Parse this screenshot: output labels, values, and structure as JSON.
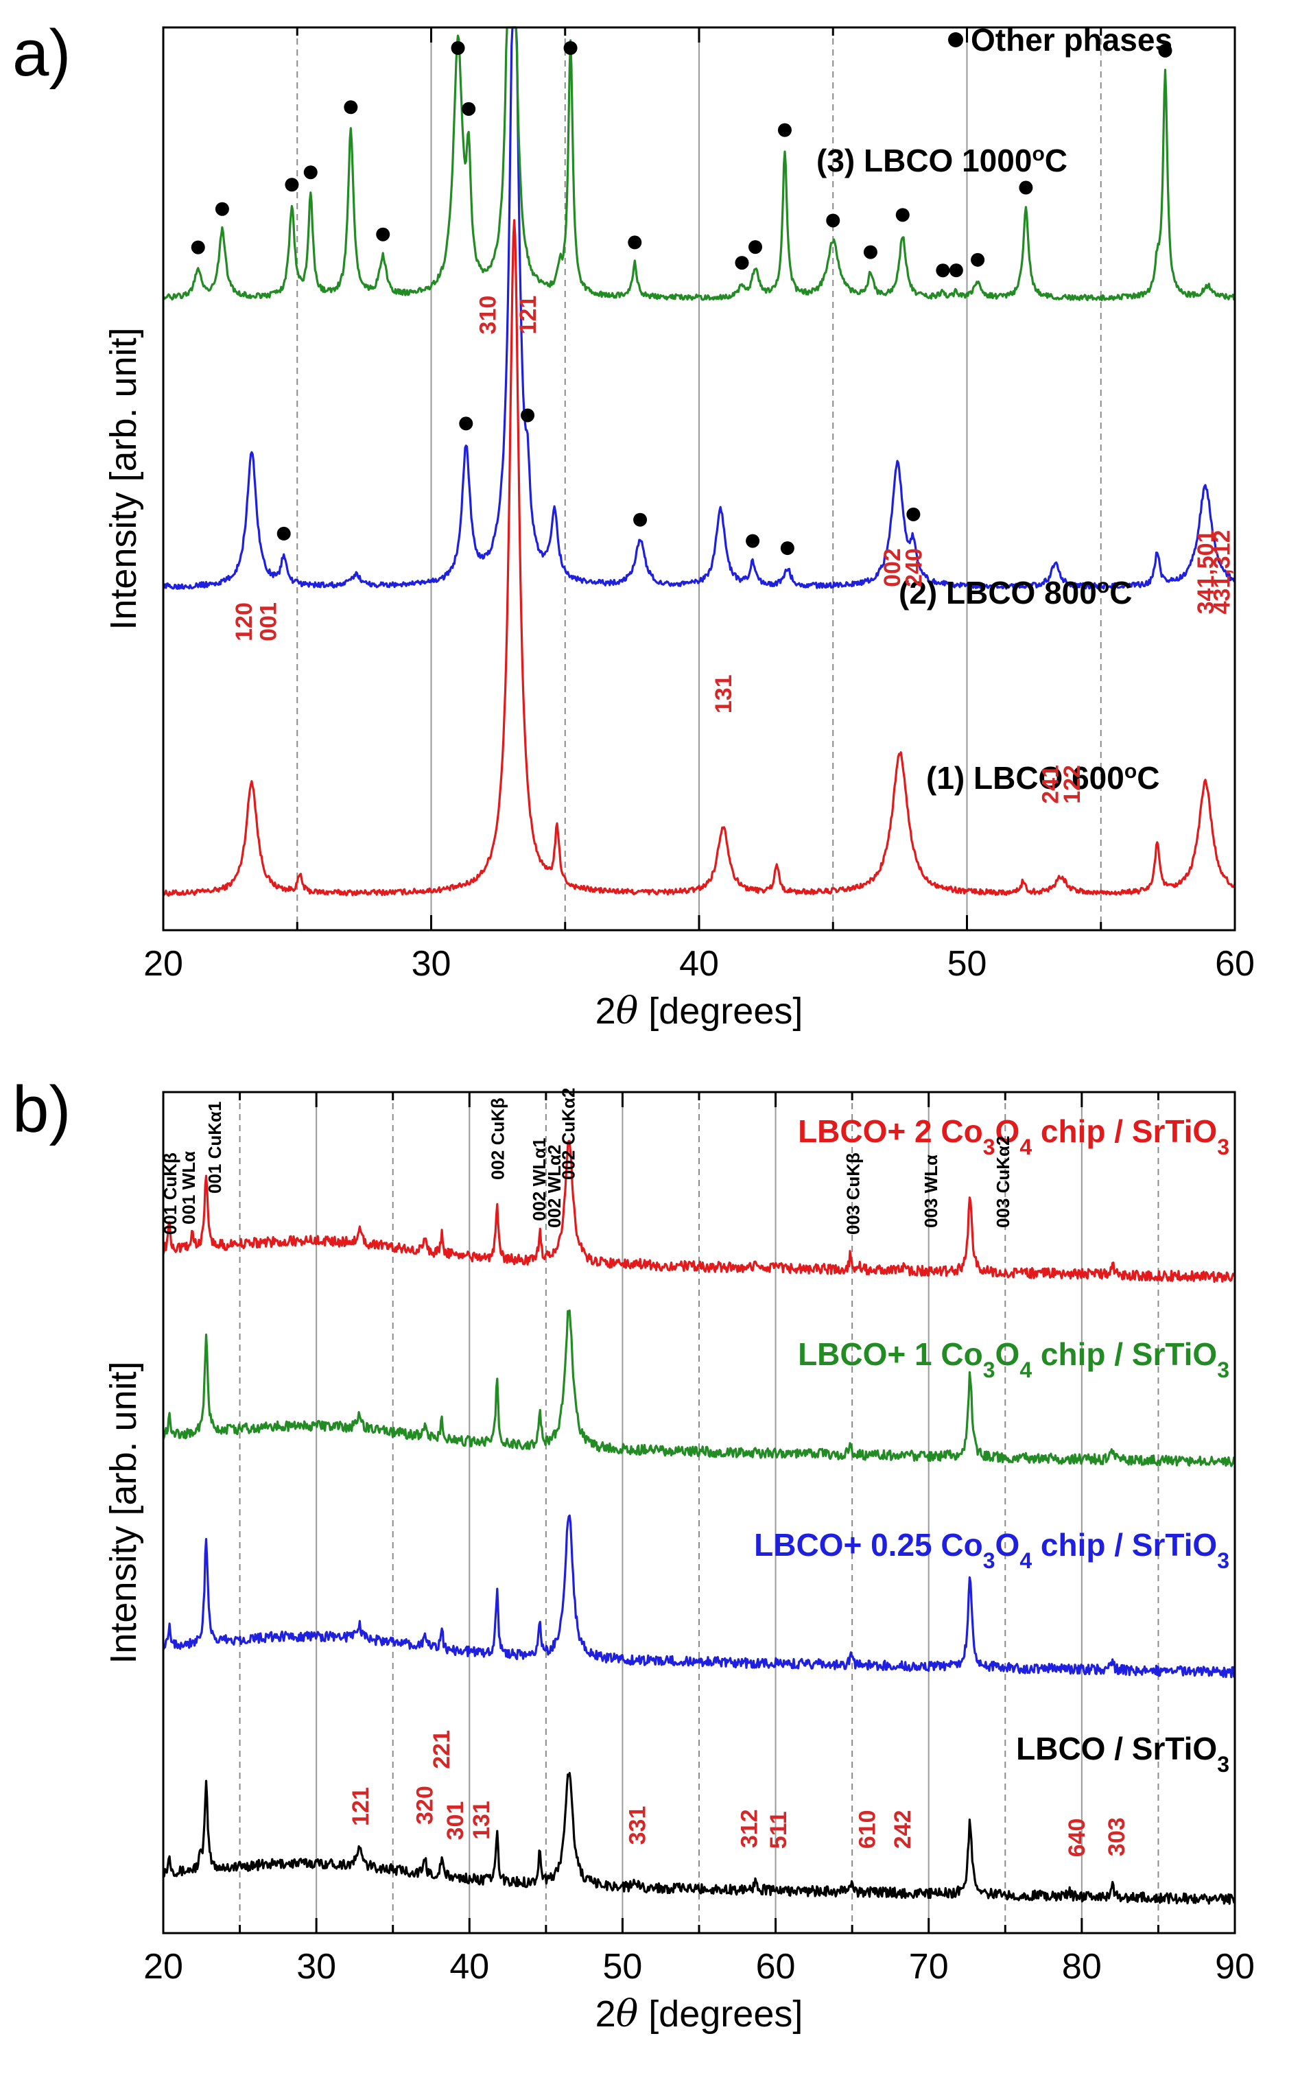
{
  "chart_data": [
    {
      "panel": "a)",
      "type": "line",
      "xlabel_prefix": "2",
      "xlabel_theta": "θ",
      "xlabel_suffix": " [degrees]",
      "ylabel": "Intensity [arb. unit]",
      "xlim": [
        20,
        60
      ],
      "xticks": [
        20,
        30,
        40,
        50,
        60
      ],
      "solid_gridlines_x": [
        30,
        40,
        50
      ],
      "dashed_gridlines_x": [
        25,
        35,
        45,
        55
      ],
      "legend": "Other phases",
      "series": [
        {
          "name": "(1) LBCO 600°C",
          "label_main": "(1) LBCO 600",
          "label_sup": "o",
          "label_end": "C",
          "color": "#e31a1c",
          "baseline": 0.04,
          "peaks": [
            [
              23.3,
              0.2,
              0.25
            ],
            [
              25.1,
              0.03,
              0.1
            ],
            [
              33.1,
              1.2,
              0.22
            ],
            [
              34.7,
              0.1,
              0.1
            ],
            [
              40.9,
              0.12,
              0.25
            ],
            [
              42.9,
              0.05,
              0.1
            ],
            [
              47.5,
              0.25,
              0.35
            ],
            [
              52.1,
              0.02,
              0.1
            ],
            [
              53.5,
              0.03,
              0.25
            ],
            [
              57.1,
              0.09,
              0.1
            ],
            [
              58.9,
              0.2,
              0.3
            ]
          ]
        },
        {
          "name": "(2) LBCO 800°C",
          "label_main": "(2) LBCO 800",
          "label_sup": "o",
          "label_end": "C",
          "color": "#1f1fe0",
          "baseline": 0.38,
          "peaks": [
            [
              23.3,
              0.24,
              0.22
            ],
            [
              24.5,
              0.05,
              0.12
            ],
            [
              27.2,
              0.02,
              0.2
            ],
            [
              31.3,
              0.24,
              0.18
            ],
            [
              33.1,
              1.2,
              0.2
            ],
            [
              33.6,
              0.1,
              0.1
            ],
            [
              34.6,
              0.12,
              0.15
            ],
            [
              37.8,
              0.08,
              0.22
            ],
            [
              40.8,
              0.14,
              0.2
            ],
            [
              42.0,
              0.04,
              0.12
            ],
            [
              43.3,
              0.03,
              0.15
            ],
            [
              47.4,
              0.22,
              0.25
            ],
            [
              48.0,
              0.06,
              0.15
            ],
            [
              53.3,
              0.04,
              0.2
            ],
            [
              57.1,
              0.06,
              0.1
            ],
            [
              58.9,
              0.18,
              0.3
            ]
          ]
        },
        {
          "name": "(3) LBCO 1000°C",
          "label_main": "(3) LBCO 1000",
          "label_sup": "o",
          "label_end": "C",
          "color": "#238b23",
          "baseline": 0.7,
          "peaks": [
            [
              21.3,
              0.05,
              0.15
            ],
            [
              22.2,
              0.12,
              0.15
            ],
            [
              24.8,
              0.16,
              0.12
            ],
            [
              25.5,
              0.18,
              0.1
            ],
            [
              27.0,
              0.3,
              0.12
            ],
            [
              28.2,
              0.07,
              0.15
            ],
            [
              31.0,
              0.45,
              0.2
            ],
            [
              31.4,
              0.2,
              0.1
            ],
            [
              33.0,
              1.2,
              0.15
            ],
            [
              34.8,
              0.04,
              0.1
            ],
            [
              35.2,
              0.45,
              0.1
            ],
            [
              37.6,
              0.06,
              0.1
            ],
            [
              41.6,
              0.02,
              0.12
            ],
            [
              42.1,
              0.05,
              0.15
            ],
            [
              43.2,
              0.26,
              0.1
            ],
            [
              45.0,
              0.1,
              0.25
            ],
            [
              46.4,
              0.04,
              0.12
            ],
            [
              47.6,
              0.11,
              0.15
            ],
            [
              49.1,
              0.01,
              0.1
            ],
            [
              49.6,
              0.01,
              0.1
            ],
            [
              50.4,
              0.03,
              0.15
            ],
            [
              52.2,
              0.16,
              0.12
            ],
            [
              57.1,
              0.05,
              0.1
            ],
            [
              57.4,
              0.4,
              0.1
            ],
            [
              59.0,
              0.02,
              0.2
            ]
          ]
        }
      ],
      "dot_markers": [
        {
          "series": 2,
          "x": [
            21.3,
            22.2,
            24.8,
            25.5,
            27.0,
            28.2,
            31.0,
            31.4,
            35.2,
            37.6,
            41.6,
            42.1,
            43.2,
            45.0,
            46.4,
            47.6,
            49.1,
            49.6,
            50.4,
            52.2,
            57.4
          ]
        },
        {
          "series": 1,
          "x": [
            24.5,
            31.3,
            33.6,
            37.8,
            42.0,
            43.3,
            48.0
          ]
        }
      ],
      "peak_labels": [
        {
          "text": "120",
          "x": 23.0,
          "above": 0.28
        },
        {
          "text": "001",
          "x": 23.9,
          "above": 0.28
        },
        {
          "text": "310",
          "x": 32.1,
          "above": 0.62
        },
        {
          "text": "121",
          "x": 33.6,
          "above": 0.62
        },
        {
          "text": "131",
          "x": 40.9,
          "above": 0.2
        },
        {
          "text": "002",
          "x": 47.2,
          "above": 0.34
        },
        {
          "text": "240",
          "x": 48.0,
          "above": 0.34
        },
        {
          "text": "241",
          "x": 53.1,
          "above": 0.1
        },
        {
          "text": "122",
          "x": 53.9,
          "above": 0.1
        },
        {
          "text": "341,501",
          "x": 58.9,
          "above": 0.31,
          "small": true
        },
        {
          "text": "431,312",
          "x": 59.5,
          "above": 0.31,
          "small": true
        }
      ]
    },
    {
      "panel": "b)",
      "type": "line",
      "xlabel_prefix": "2",
      "xlabel_theta": "θ",
      "xlabel_suffix": " [degrees]",
      "ylabel": "Intensity [arb. unit]",
      "xlim": [
        20,
        90
      ],
      "xticks": [
        20,
        30,
        40,
        50,
        60,
        70,
        80,
        90
      ],
      "solid_gridlines_x": [
        30,
        40,
        50,
        60,
        70,
        80
      ],
      "dashed_gridlines_x": [
        25,
        35,
        45,
        55,
        65,
        75,
        85
      ],
      "series": [
        {
          "name": "LBCO / SrTiO3",
          "label_parts": [
            "LBCO / SrTiO",
            "3",
            ""
          ],
          "color": "#000000",
          "baseline": 0.04,
          "peaks": [
            [
              20.4,
              0.03,
              0.1
            ],
            [
              22.4,
              0.02,
              0.1
            ],
            [
              22.8,
              0.16,
              0.12
            ],
            [
              32.8,
              0.04,
              0.15
            ],
            [
              37.1,
              0.03,
              0.08
            ],
            [
              38.2,
              0.04,
              0.08
            ],
            [
              41.8,
              0.09,
              0.1
            ],
            [
              44.6,
              0.06,
              0.1
            ],
            [
              46.5,
              0.22,
              0.3
            ],
            [
              50.9,
              0.01,
              0.15
            ],
            [
              58.7,
              0.02,
              0.12
            ],
            [
              64.9,
              0.02,
              0.1
            ],
            [
              72.7,
              0.14,
              0.15
            ],
            [
              79.2,
              0.01,
              0.1
            ],
            [
              82.0,
              0.02,
              0.1
            ]
          ]
        },
        {
          "name": "LBCO+ 0.25 Co3O4 chip / SrTiO3",
          "label_parts": [
            "LBCO+ 0.25 Co",
            "3",
            "O",
            "4",
            " chip / SrTiO",
            "3",
            ""
          ],
          "color": "#1f1fe0",
          "baseline": 0.31,
          "peaks": [
            [
              20.4,
              0.04,
              0.1
            ],
            [
              22.8,
              0.2,
              0.12
            ],
            [
              32.8,
              0.03,
              0.15
            ],
            [
              37.1,
              0.03,
              0.08
            ],
            [
              38.2,
              0.04,
              0.08
            ],
            [
              41.8,
              0.12,
              0.1
            ],
            [
              44.6,
              0.06,
              0.1
            ],
            [
              46.5,
              0.28,
              0.3
            ],
            [
              64.9,
              0.02,
              0.1
            ],
            [
              72.7,
              0.18,
              0.15
            ],
            [
              82.0,
              0.02,
              0.1
            ]
          ]
        },
        {
          "name": "LBCO+ 1 Co3O4 chip / SrTiO3",
          "label_parts": [
            "LBCO+ 1 Co",
            "3",
            "O",
            "4",
            " chip / SrTiO",
            "3",
            ""
          ],
          "color": "#238b23",
          "baseline": 0.56,
          "peaks": [
            [
              20.4,
              0.04,
              0.1
            ],
            [
              22.8,
              0.18,
              0.12
            ],
            [
              32.8,
              0.03,
              0.15
            ],
            [
              37.1,
              0.03,
              0.08
            ],
            [
              38.2,
              0.04,
              0.08
            ],
            [
              41.8,
              0.12,
              0.1
            ],
            [
              44.6,
              0.06,
              0.1
            ],
            [
              46.5,
              0.27,
              0.3
            ],
            [
              64.9,
              0.02,
              0.1
            ],
            [
              72.7,
              0.16,
              0.15
            ],
            [
              82.0,
              0.02,
              0.1
            ]
          ]
        },
        {
          "name": "LBCO+ 2 Co3O4 chip / SrTiO3",
          "label_parts": [
            "LBCO+ 2 Co",
            "3",
            "O",
            "4",
            " chip / SrTiO",
            "3",
            ""
          ],
          "color": "#e31a1c",
          "baseline": 0.78,
          "peaks": [
            [
              20.4,
              0.05,
              0.1
            ],
            [
              21.9,
              0.03,
              0.1
            ],
            [
              22.8,
              0.14,
              0.12
            ],
            [
              32.8,
              0.03,
              0.15
            ],
            [
              37.1,
              0.03,
              0.08
            ],
            [
              38.2,
              0.04,
              0.08
            ],
            [
              41.8,
              0.1,
              0.1
            ],
            [
              44.6,
              0.05,
              0.1
            ],
            [
              46.5,
              0.24,
              0.3
            ],
            [
              50.9,
              0.01,
              0.15
            ],
            [
              58.7,
              0.01,
              0.12
            ],
            [
              64.9,
              0.03,
              0.1
            ],
            [
              65.4,
              0.01,
              0.1
            ],
            [
              68.4,
              0.01,
              0.1
            ],
            [
              72.7,
              0.15,
              0.15
            ],
            [
              82.0,
              0.02,
              0.1
            ]
          ]
        }
      ],
      "peak_labels_red": [
        {
          "text": "121",
          "x": 32.9,
          "above": 0.07
        },
        {
          "text": "320",
          "x": 37.1,
          "above": 0.07
        },
        {
          "text": "221",
          "x": 38.2,
          "above": 0.13
        },
        {
          "text": "301",
          "x": 39.1,
          "above": 0.07
        },
        {
          "text": "131",
          "x": 40.8,
          "above": 0.07
        },
        {
          "text": "331",
          "x": 51.0,
          "above": 0.06
        },
        {
          "text": "312",
          "x": 58.3,
          "above": 0.06
        },
        {
          "text": "511",
          "x": 60.2,
          "above": 0.06
        },
        {
          "text": "610",
          "x": 66.0,
          "above": 0.06
        },
        {
          "text": "242",
          "x": 68.3,
          "above": 0.06
        },
        {
          "text": "640",
          "x": 79.7,
          "above": 0.05
        },
        {
          "text": "303",
          "x": 82.3,
          "above": 0.05
        }
      ],
      "peak_labels_black": [
        {
          "parts": [
            "001 CuK",
            "β",
            ""
          ],
          "x": 20.5
        },
        {
          "parts": [
            "001 WL",
            "α",
            ""
          ],
          "x": 21.7
        },
        {
          "parts": [
            "001 CuK",
            "α",
            "1"
          ],
          "x": 23.4
        },
        {
          "parts": [
            "002 CuK",
            "β",
            ""
          ],
          "x": 41.9
        },
        {
          "parts": [
            "002 WL",
            "α",
            "1"
          ],
          "x": 44.6
        },
        {
          "parts": [
            "002 WL",
            "α",
            "2"
          ],
          "x": 45.6
        },
        {
          "parts": [
            "002 CuK",
            "α",
            "2"
          ],
          "x": 46.5
        },
        {
          "parts": [
            "003 CuK",
            "β",
            ""
          ],
          "x": 65.1
        },
        {
          "parts": [
            "003 WL",
            "α",
            ""
          ],
          "x": 70.2
        },
        {
          "parts": [
            "003 CuK",
            "α",
            "2"
          ],
          "x": 74.9
        }
      ]
    }
  ]
}
